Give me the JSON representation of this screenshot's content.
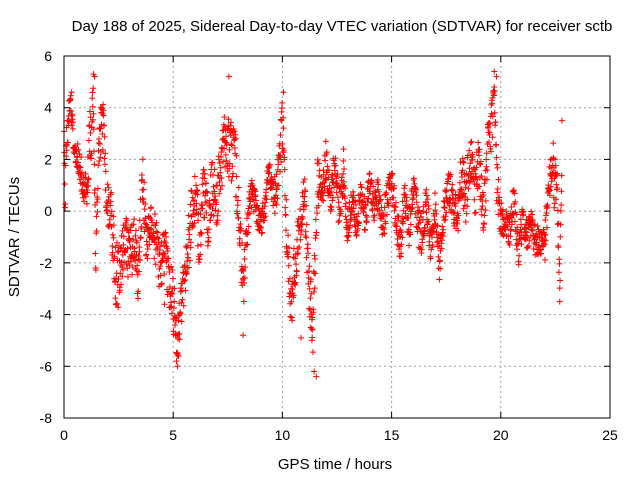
{
  "chart_data": {
    "type": "scatter",
    "title": "Day 188 of 2025, Sidereal Day-to-day VTEC variation (SDTVAR) for receiver sctb",
    "xlabel": "GPS time / hours",
    "ylabel": "SDTVAR / TECUs",
    "xlim": [
      0,
      25
    ],
    "ylim": [
      -8,
      6
    ],
    "xticks": [
      0,
      5,
      10,
      15,
      20,
      25
    ],
    "yticks": [
      -8,
      -6,
      -4,
      -2,
      0,
      2,
      4,
      6
    ],
    "grid": true,
    "marker": "+",
    "marker_color": "#ff0000",
    "series": [
      {
        "name": "SDTVAR",
        "anchors": [
          [
            0.0,
            3.0,
            0.4
          ],
          [
            0.05,
            0.0,
            0.5
          ],
          [
            0.1,
            2.8,
            0.8
          ],
          [
            0.2,
            3.5,
            0.7
          ],
          [
            0.3,
            4.2,
            0.4
          ],
          [
            0.45,
            2.6,
            0.5
          ],
          [
            1.0,
            0.8,
            0.8
          ],
          [
            1.2,
            2.5,
            1.5
          ],
          [
            1.35,
            4.5,
            0.8
          ],
          [
            1.45,
            -2.0,
            0.6
          ],
          [
            1.6,
            2.8,
            1.2
          ],
          [
            1.8,
            3.2,
            1.0
          ],
          [
            1.95,
            0.5,
            0.8
          ],
          [
            2.2,
            -0.5,
            1.2
          ],
          [
            2.4,
            -2.8,
            1.5
          ],
          [
            2.6,
            -1.8,
            1.2
          ],
          [
            2.8,
            -0.8,
            1.0
          ],
          [
            3.0,
            -2.0,
            1.2
          ],
          [
            3.2,
            -1.0,
            1.0
          ],
          [
            3.4,
            -2.5,
            1.0
          ],
          [
            3.6,
            1.2,
            1.0
          ],
          [
            3.8,
            -1.5,
            1.0
          ],
          [
            4.0,
            -0.5,
            0.8
          ],
          [
            4.2,
            -1.2,
            1.0
          ],
          [
            4.4,
            -2.2,
            1.0
          ],
          [
            4.6,
            -1.5,
            1.0
          ],
          [
            4.8,
            -2.8,
            1.0
          ],
          [
            5.0,
            -3.5,
            1.2
          ],
          [
            5.2,
            -5.0,
            1.0
          ],
          [
            5.4,
            -3.2,
            1.0
          ],
          [
            5.6,
            -2.0,
            1.0
          ],
          [
            5.8,
            -0.5,
            1.2
          ],
          [
            6.0,
            0.5,
            1.0
          ],
          [
            6.2,
            -1.0,
            1.2
          ],
          [
            6.4,
            0.8,
            1.0
          ],
          [
            6.6,
            -0.5,
            1.0
          ],
          [
            6.8,
            1.0,
            1.2
          ],
          [
            7.0,
            0.5,
            1.2
          ],
          [
            7.2,
            1.8,
            1.0
          ],
          [
            7.4,
            3.0,
            1.2
          ],
          [
            7.6,
            2.2,
            1.2
          ],
          [
            7.8,
            2.5,
            1.2
          ],
          [
            8.0,
            0.0,
            1.0
          ],
          [
            8.2,
            -3.0,
            1.2
          ],
          [
            8.4,
            -0.5,
            0.8
          ],
          [
            8.6,
            0.8,
            0.6
          ],
          [
            8.8,
            0.2,
            0.6
          ],
          [
            9.0,
            -0.5,
            0.6
          ],
          [
            9.2,
            0.2,
            0.6
          ],
          [
            9.4,
            1.8,
            0.6
          ],
          [
            9.6,
            0.5,
            0.8
          ],
          [
            9.8,
            1.2,
            0.8
          ],
          [
            10.0,
            3.5,
            1.0
          ],
          [
            10.2,
            -1.0,
            1.0
          ],
          [
            10.4,
            -3.5,
            1.2
          ],
          [
            10.6,
            -1.8,
            1.0
          ],
          [
            10.8,
            -0.5,
            0.8
          ],
          [
            11.0,
            0.8,
            0.8
          ],
          [
            11.2,
            -2.5,
            1.2
          ],
          [
            11.4,
            -4.5,
            1.2
          ],
          [
            11.6,
            1.2,
            1.0
          ],
          [
            11.8,
            0.5,
            0.8
          ],
          [
            12.0,
            2.0,
            0.8
          ],
          [
            12.2,
            0.5,
            0.8
          ],
          [
            12.4,
            1.8,
            0.8
          ],
          [
            12.6,
            0.0,
            0.8
          ],
          [
            12.8,
            1.5,
            0.8
          ],
          [
            13.0,
            -0.8,
            0.8
          ],
          [
            13.2,
            0.5,
            0.6
          ],
          [
            13.4,
            -0.5,
            0.6
          ],
          [
            13.6,
            0.8,
            0.8
          ],
          [
            13.8,
            -0.3,
            0.6
          ],
          [
            14.0,
            1.0,
            0.6
          ],
          [
            14.2,
            0.2,
            0.6
          ],
          [
            14.4,
            0.8,
            0.8
          ],
          [
            14.6,
            -0.5,
            0.8
          ],
          [
            14.8,
            0.5,
            0.6
          ],
          [
            15.0,
            1.2,
            0.6
          ],
          [
            15.2,
            -0.3,
            0.8
          ],
          [
            15.4,
            -1.5,
            0.8
          ],
          [
            15.6,
            0.8,
            0.6
          ],
          [
            15.8,
            -0.8,
            0.8
          ],
          [
            16.0,
            1.2,
            0.6
          ],
          [
            16.2,
            -0.5,
            0.8
          ],
          [
            16.4,
            -1.0,
            0.8
          ],
          [
            16.6,
            0.5,
            0.6
          ],
          [
            16.8,
            -1.5,
            0.8
          ],
          [
            17.0,
            0.2,
            0.6
          ],
          [
            17.2,
            -2.0,
            0.8
          ],
          [
            17.4,
            0.0,
            0.6
          ],
          [
            17.6,
            1.0,
            0.8
          ],
          [
            17.8,
            0.5,
            0.8
          ],
          [
            18.0,
            -0.5,
            0.8
          ],
          [
            18.2,
            1.5,
            1.0
          ],
          [
            18.4,
            0.5,
            1.0
          ],
          [
            18.6,
            2.2,
            1.0
          ],
          [
            18.8,
            0.5,
            1.0
          ],
          [
            19.0,
            2.0,
            1.0
          ],
          [
            19.2,
            -0.2,
            1.0
          ],
          [
            19.4,
            2.2,
            1.2
          ],
          [
            19.6,
            3.5,
            1.0
          ],
          [
            19.7,
            4.5,
            0.6
          ],
          [
            19.8,
            1.5,
            1.0
          ],
          [
            20.0,
            -0.5,
            0.8
          ],
          [
            20.2,
            -0.2,
            0.6
          ],
          [
            20.4,
            -0.8,
            0.6
          ],
          [
            20.6,
            0.5,
            0.6
          ],
          [
            20.8,
            -1.5,
            0.8
          ],
          [
            21.0,
            -0.3,
            0.6
          ],
          [
            21.2,
            -1.0,
            0.6
          ],
          [
            21.4,
            -0.5,
            0.6
          ],
          [
            21.6,
            -1.2,
            0.6
          ],
          [
            21.8,
            -0.8,
            0.8
          ],
          [
            22.0,
            -1.5,
            0.8
          ],
          [
            22.2,
            1.0,
            0.6
          ],
          [
            22.4,
            1.5,
            1.2
          ],
          [
            22.6,
            0.5,
            1.2
          ],
          [
            22.7,
            -2.8,
            0.6
          ],
          [
            22.8,
            2.2,
            0.8
          ]
        ],
        "outliers": [
          [
            0.35,
            4.6
          ],
          [
            1.35,
            5.3
          ],
          [
            1.4,
            5.2
          ],
          [
            4.6,
            -3.6
          ],
          [
            5.15,
            -5.8
          ],
          [
            5.2,
            -6.0
          ],
          [
            5.25,
            -5.6
          ],
          [
            7.55,
            5.2
          ],
          [
            8.2,
            -4.8
          ],
          [
            10.05,
            4.6
          ],
          [
            10.85,
            -4.9
          ],
          [
            11.3,
            -4.5
          ],
          [
            11.35,
            -5.0
          ],
          [
            11.45,
            -6.2
          ],
          [
            11.55,
            -6.4
          ],
          [
            12.8,
            2.4
          ],
          [
            19.7,
            5.4
          ],
          [
            19.8,
            5.2
          ],
          [
            22.8,
            3.5
          ],
          [
            22.7,
            -3.5
          ]
        ]
      }
    ]
  }
}
